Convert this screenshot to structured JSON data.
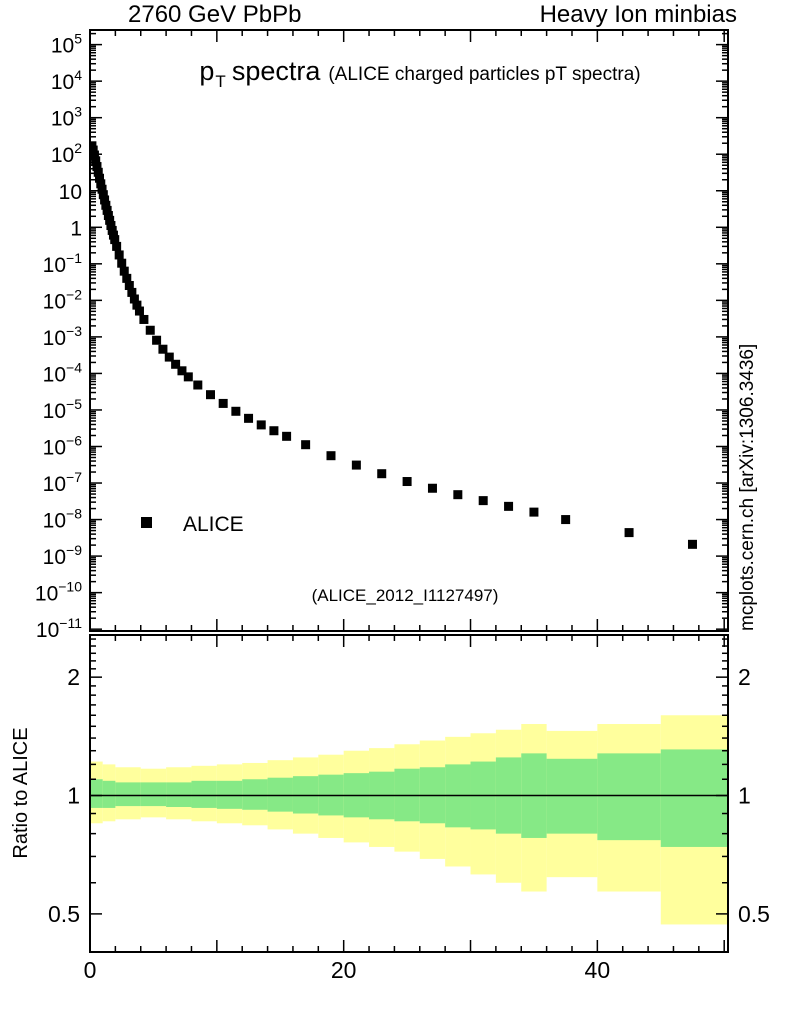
{
  "header": {
    "left": "2760 GeV PbPb",
    "right": "Heavy Ion minbias"
  },
  "side_watermark": "mcplots.cern.ch [arXiv:1306.3436]",
  "main_panel": {
    "title": {
      "p": "p",
      "sub": "T",
      "main": "spectra",
      "paren": "(ALICE charged particles pT spectra)"
    },
    "legend_label": "ALICE",
    "dataset_label": "(ALICE_2012_I1127497)"
  },
  "ratio_panel": {
    "ylabel": "Ratio to ALICE"
  },
  "colors": {
    "marker": "#000000",
    "band_inner": "#86e986",
    "band_outer": "#ffff9d",
    "dataset_gray": "#a0a0a0",
    "watermark_gray": "#808080",
    "frame": "#000000"
  },
  "chart_data": [
    {
      "type": "scatter",
      "title": "pT spectra (ALICE charged particles pT spectra)",
      "xlabel": "",
      "ylabel": "",
      "xlim": [
        0,
        50.3
      ],
      "yscale": "log",
      "ylim_exp": [
        -11.05,
        5.4
      ],
      "x_ticks": [
        0,
        20,
        40
      ],
      "y_tick_exponents": [
        5,
        4,
        3,
        2,
        1,
        0,
        -1,
        -2,
        -3,
        -4,
        -5,
        -6,
        -7,
        -8,
        -9,
        -10,
        -11
      ],
      "legend_position": "left-lower",
      "series": [
        {
          "name": "ALICE",
          "marker": "square",
          "color": "#000000",
          "points": [
            [
              0.15,
              170
            ],
            [
              0.25,
              130
            ],
            [
              0.35,
              95
            ],
            [
              0.45,
              66
            ],
            [
              0.55,
              46
            ],
            [
              0.65,
              32
            ],
            [
              0.75,
              22
            ],
            [
              0.85,
              15.5
            ],
            [
              0.95,
              11
            ],
            [
              1.05,
              7.8
            ],
            [
              1.15,
              5.6
            ],
            [
              1.25,
              4.0
            ],
            [
              1.35,
              2.9
            ],
            [
              1.45,
              2.1
            ],
            [
              1.55,
              1.55
            ],
            [
              1.65,
              1.12
            ],
            [
              1.75,
              0.82
            ],
            [
              1.85,
              0.61
            ],
            [
              1.95,
              0.46
            ],
            [
              2.1,
              0.3
            ],
            [
              2.3,
              0.175
            ],
            [
              2.5,
              0.104
            ],
            [
              2.7,
              0.063
            ],
            [
              2.9,
              0.04
            ],
            [
              3.1,
              0.0255
            ],
            [
              3.3,
              0.0165
            ],
            [
              3.5,
              0.0109
            ],
            [
              3.7,
              0.0074
            ],
            [
              3.9,
              0.0051
            ],
            [
              4.25,
              0.003
            ],
            [
              4.75,
              0.00152
            ],
            [
              5.25,
              0.00081
            ],
            [
              5.75,
              0.00046
            ],
            [
              6.25,
              0.00028
            ],
            [
              6.75,
              0.000178
            ],
            [
              7.25,
              0.000118
            ],
            [
              7.75,
              8.05e-05
            ],
            [
              8.5,
              4.82e-05
            ],
            [
              9.5,
              2.62e-05
            ],
            [
              10.5,
              1.51e-05
            ],
            [
              11.5,
              9.2e-06
            ],
            [
              12.5,
              5.9e-06
            ],
            [
              13.5,
              3.9e-06
            ],
            [
              14.5,
              2.7e-06
            ],
            [
              15.5,
              1.9e-06
            ],
            [
              17,
              1.12e-06
            ],
            [
              19,
              5.6e-07
            ],
            [
              21,
              3.1e-07
            ],
            [
              23,
              1.8e-07
            ],
            [
              25,
              1.1e-07
            ],
            [
              27,
              7.2e-08
            ],
            [
              29,
              4.8e-08
            ],
            [
              31,
              3.3e-08
            ],
            [
              33,
              2.3e-08
            ],
            [
              35,
              1.6e-08
            ],
            [
              37.5,
              1e-08
            ],
            [
              42.5,
              4.4e-09
            ],
            [
              47.5,
              2.1e-09
            ]
          ]
        }
      ]
    },
    {
      "type": "band-ratio",
      "ylabel": "Ratio to ALICE",
      "xlim": [
        0,
        50.3
      ],
      "yscale": "log",
      "ylim": [
        0.4,
        2.56
      ],
      "y_ticks": [
        0.5,
        1,
        2
      ],
      "x_ticks": [
        0,
        20,
        40
      ],
      "reference_line": 1,
      "bins": [
        {
          "x0": 0,
          "x1": 1,
          "inner": [
            0.93,
            1.1
          ],
          "outer": [
            0.85,
            1.22
          ]
        },
        {
          "x0": 1,
          "x1": 2,
          "inner": [
            0.93,
            1.09
          ],
          "outer": [
            0.86,
            1.2
          ]
        },
        {
          "x0": 2,
          "x1": 4,
          "inner": [
            0.94,
            1.08
          ],
          "outer": [
            0.87,
            1.18
          ]
        },
        {
          "x0": 4,
          "x1": 6,
          "inner": [
            0.94,
            1.08
          ],
          "outer": [
            0.88,
            1.17
          ]
        },
        {
          "x0": 6,
          "x1": 8,
          "inner": [
            0.935,
            1.08
          ],
          "outer": [
            0.87,
            1.18
          ]
        },
        {
          "x0": 8,
          "x1": 10,
          "inner": [
            0.93,
            1.09
          ],
          "outer": [
            0.86,
            1.19
          ]
        },
        {
          "x0": 10,
          "x1": 12,
          "inner": [
            0.925,
            1.09
          ],
          "outer": [
            0.85,
            1.2
          ]
        },
        {
          "x0": 12,
          "x1": 14,
          "inner": [
            0.92,
            1.1
          ],
          "outer": [
            0.84,
            1.21
          ]
        },
        {
          "x0": 14,
          "x1": 16,
          "inner": [
            0.91,
            1.11
          ],
          "outer": [
            0.82,
            1.23
          ]
        },
        {
          "x0": 16,
          "x1": 18,
          "inner": [
            0.9,
            1.12
          ],
          "outer": [
            0.8,
            1.25
          ]
        },
        {
          "x0": 18,
          "x1": 20,
          "inner": [
            0.89,
            1.13
          ],
          "outer": [
            0.78,
            1.27
          ]
        },
        {
          "x0": 20,
          "x1": 22,
          "inner": [
            0.88,
            1.14
          ],
          "outer": [
            0.76,
            1.3
          ]
        },
        {
          "x0": 22,
          "x1": 24,
          "inner": [
            0.87,
            1.15
          ],
          "outer": [
            0.74,
            1.32
          ]
        },
        {
          "x0": 24,
          "x1": 26,
          "inner": [
            0.86,
            1.17
          ],
          "outer": [
            0.72,
            1.35
          ]
        },
        {
          "x0": 26,
          "x1": 28,
          "inner": [
            0.85,
            1.18
          ],
          "outer": [
            0.69,
            1.38
          ]
        },
        {
          "x0": 28,
          "x1": 30,
          "inner": [
            0.83,
            1.2
          ],
          "outer": [
            0.66,
            1.41
          ]
        },
        {
          "x0": 30,
          "x1": 32,
          "inner": [
            0.82,
            1.22
          ],
          "outer": [
            0.63,
            1.44
          ]
        },
        {
          "x0": 32,
          "x1": 34,
          "inner": [
            0.8,
            1.25
          ],
          "outer": [
            0.6,
            1.47
          ]
        },
        {
          "x0": 34,
          "x1": 36,
          "inner": [
            0.78,
            1.28
          ],
          "outer": [
            0.57,
            1.52
          ]
        },
        {
          "x0": 36,
          "x1": 40,
          "inner": [
            0.8,
            1.24
          ],
          "outer": [
            0.62,
            1.46
          ]
        },
        {
          "x0": 40,
          "x1": 45,
          "inner": [
            0.77,
            1.28
          ],
          "outer": [
            0.57,
            1.52
          ]
        },
        {
          "x0": 45,
          "x1": 50.3,
          "inner": [
            0.74,
            1.31
          ],
          "outer": [
            0.47,
            1.6
          ]
        }
      ]
    }
  ]
}
